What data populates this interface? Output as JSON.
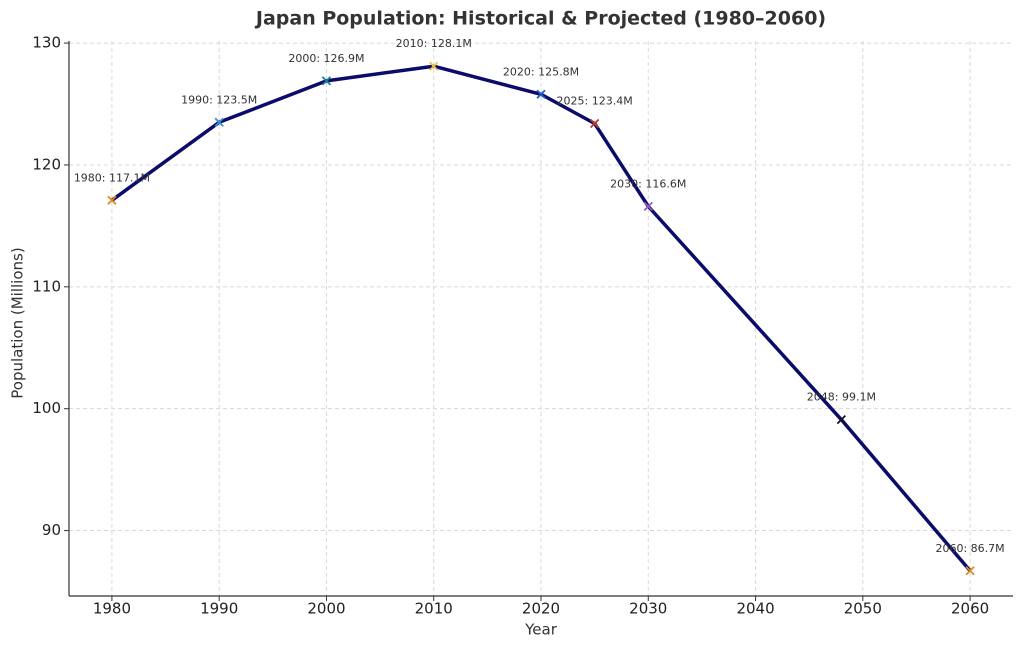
{
  "chart_data": {
    "type": "line",
    "title": "Japan Population: Historical & Projected (1980–2060)",
    "x_label": "Year",
    "y_label": "Population (Millions)",
    "x": [
      1980,
      1990,
      2000,
      2010,
      2020,
      2025,
      2030,
      2048,
      2060
    ],
    "values": [
      117.1,
      123.5,
      126.9,
      128.1,
      125.8,
      123.4,
      116.6,
      99.1,
      86.7
    ],
    "value_labels": [
      "1980: 117.1M",
      "1990: 123.5M",
      "2000: 126.9M",
      "2010: 128.1M",
      "2020: 125.8M",
      "2025: 123.4M",
      "2030: 116.6M",
      "2048: 99.1M",
      "2060: 86.7M"
    ],
    "color": "#0b0b6b",
    "marker_colors": [
      "#d98c1f",
      "#3b8fd0",
      "#1a7a9a",
      "#e8c640",
      "#1f5fbf",
      "#c0392b",
      "#8e5bbf",
      "#111133",
      "#d98c1f"
    ],
    "xlim": [
      1976,
      2064
    ],
    "xticks": [
      1980,
      1990,
      2000,
      2010,
      2020,
      2030,
      2040,
      2050,
      2060
    ],
    "ylim": [
      84.63,
      130.17
    ],
    "yticks": [
      90,
      100,
      110,
      120,
      130
    ],
    "grid": true
  }
}
